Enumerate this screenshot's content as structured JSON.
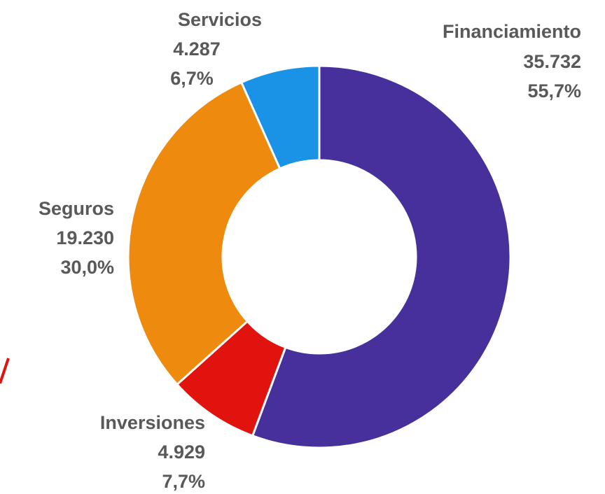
{
  "chart_data": {
    "type": "donut",
    "categories": [
      "Financiamiento",
      "Inversiones",
      "Seguros",
      "Servicios"
    ],
    "values": [
      35732,
      4929,
      19230,
      4287
    ],
    "value_labels": [
      "35.732",
      "4.929",
      "19.230",
      "4.287"
    ],
    "percentages": [
      55.7,
      7.7,
      30.0,
      6.7
    ],
    "percentage_labels": [
      "55,7%",
      "7,7%",
      "30,0%",
      "6,7%"
    ],
    "colors": [
      "#48309c",
      "#e0130f",
      "#ee8a0d",
      "#1a93e6"
    ]
  }
}
